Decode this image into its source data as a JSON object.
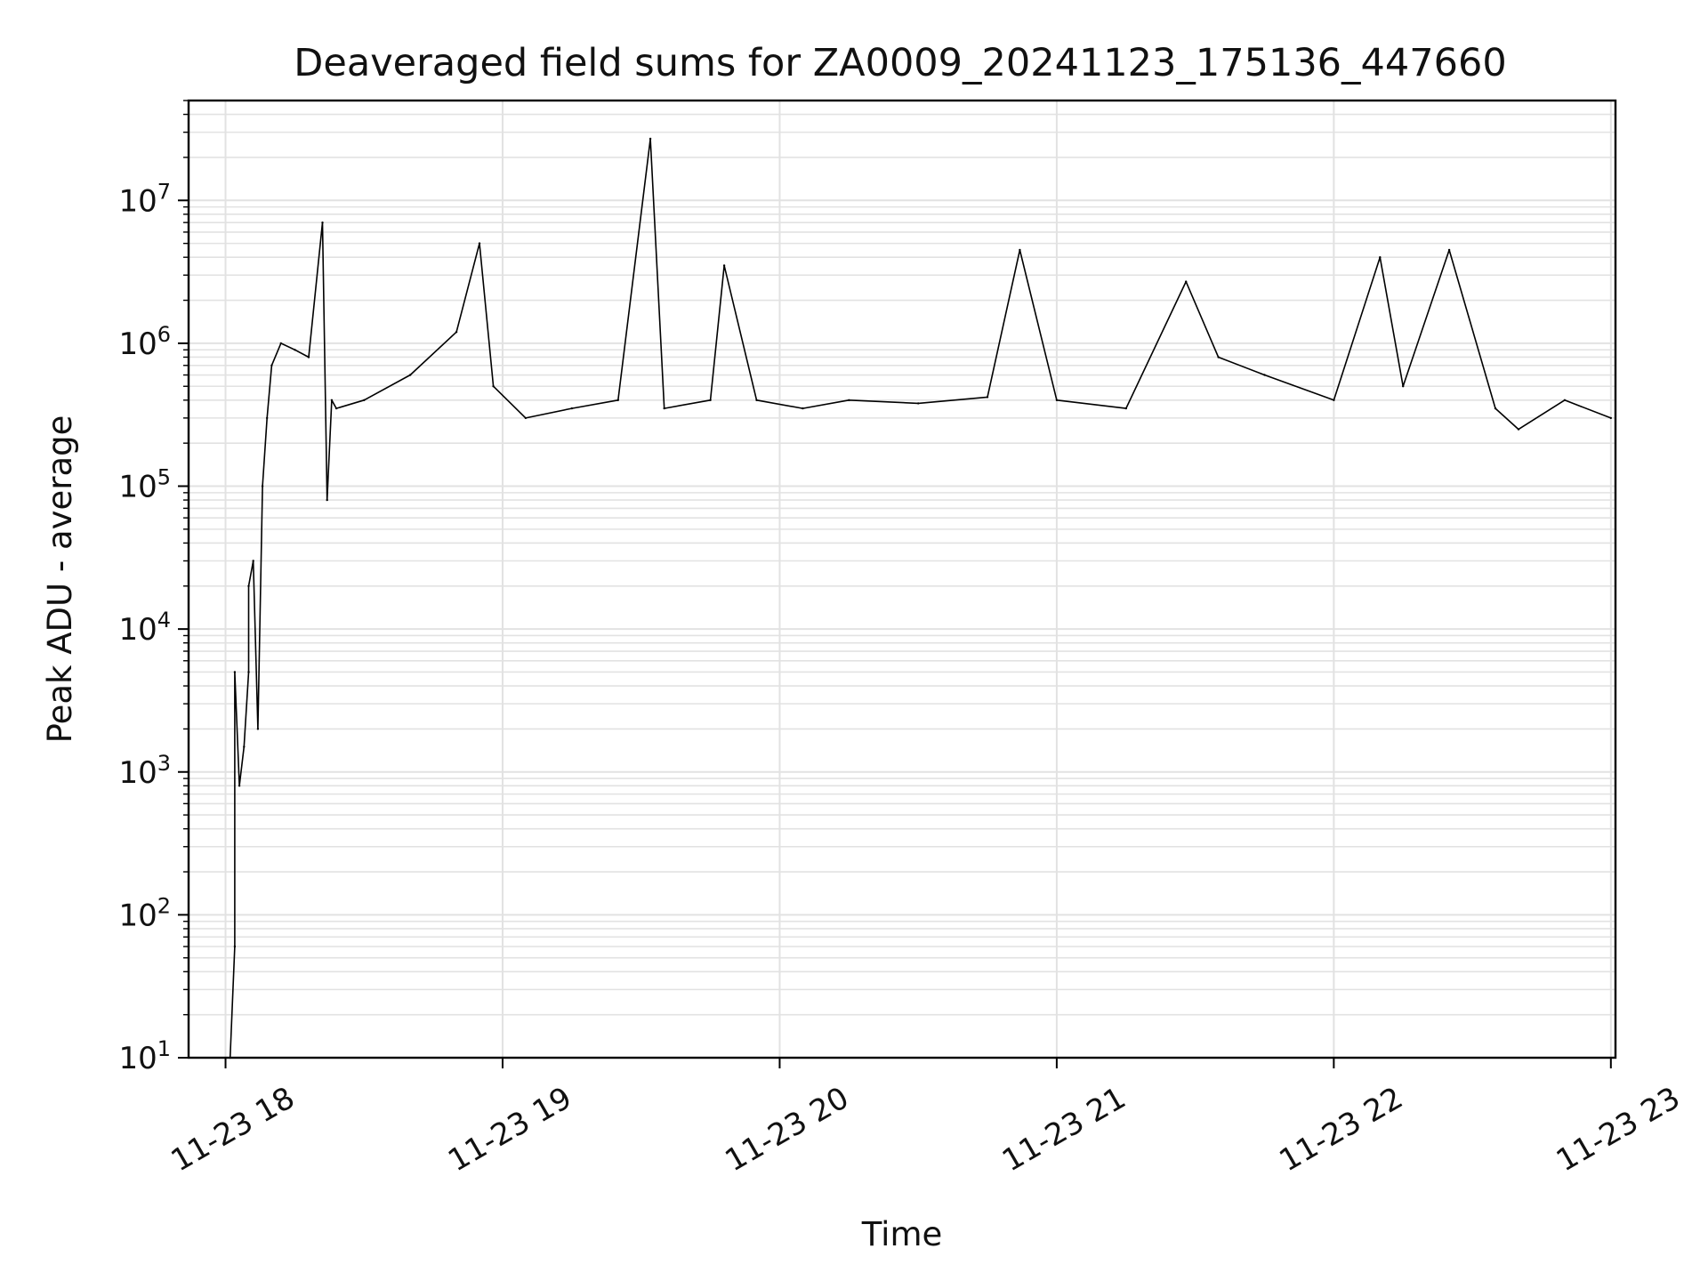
{
  "chart_data": {
    "type": "line",
    "title": "Deaveraged field sums for ZA0009_20241123_175136_447660",
    "xlabel": "Time",
    "ylabel": "Peak ADU - average",
    "yscale": "log",
    "ylim": [
      10,
      50000000
    ],
    "xlim": [
      "2024-11-23 17:52",
      "2024-11-23 23:01"
    ],
    "grid": true,
    "line_color": "#000000",
    "x_ticks": [
      {
        "value": "2024-11-23 18:00",
        "label": "11-23 18"
      },
      {
        "value": "2024-11-23 19:00",
        "label": "11-23 19"
      },
      {
        "value": "2024-11-23 20:00",
        "label": "11-23 20"
      },
      {
        "value": "2024-11-23 21:00",
        "label": "11-23 21"
      },
      {
        "value": "2024-11-23 22:00",
        "label": "11-23 22"
      },
      {
        "value": "2024-11-23 23:00",
        "label": "11-23 23"
      }
    ],
    "y_ticks": [
      {
        "value": 10,
        "base": "10",
        "exp": "1"
      },
      {
        "value": 100,
        "base": "10",
        "exp": "2"
      },
      {
        "value": 1000,
        "base": "10",
        "exp": "3"
      },
      {
        "value": 10000,
        "base": "10",
        "exp": "4"
      },
      {
        "value": 100000,
        "base": "10",
        "exp": "5"
      },
      {
        "value": 1000000,
        "base": "10",
        "exp": "6"
      },
      {
        "value": 10000000,
        "base": "10",
        "exp": "7"
      }
    ],
    "series": [
      {
        "x": [
          "2024-11-23 18:01",
          "2024-11-23 18:02",
          "2024-11-23 18:02",
          "2024-11-23 18:03",
          "2024-11-23 18:04",
          "2024-11-23 18:05",
          "2024-11-23 18:05",
          "2024-11-23 18:06",
          "2024-11-23 18:07",
          "2024-11-23 18:08",
          "2024-11-23 18:09",
          "2024-11-23 18:10",
          "2024-11-23 18:12",
          "2024-11-23 18:15",
          "2024-11-23 18:18",
          "2024-11-23 18:21",
          "2024-11-23 18:22",
          "2024-11-23 18:23",
          "2024-11-23 18:24",
          "2024-11-23 18:30",
          "2024-11-23 18:40",
          "2024-11-23 18:50",
          "2024-11-23 18:55",
          "2024-11-23 18:58",
          "2024-11-23 19:05",
          "2024-11-23 19:15",
          "2024-11-23 19:25",
          "2024-11-23 19:32",
          "2024-11-23 19:35",
          "2024-11-23 19:45",
          "2024-11-23 19:48",
          "2024-11-23 19:55",
          "2024-11-23 20:05",
          "2024-11-23 20:15",
          "2024-11-23 20:30",
          "2024-11-23 20:45",
          "2024-11-23 20:52",
          "2024-11-23 21:00",
          "2024-11-23 21:15",
          "2024-11-23 21:28",
          "2024-11-23 21:35",
          "2024-11-23 21:45",
          "2024-11-23 22:00",
          "2024-11-23 22:10",
          "2024-11-23 22:15",
          "2024-11-23 22:25",
          "2024-11-23 22:35",
          "2024-11-23 22:40",
          "2024-11-23 22:50",
          "2024-11-23 23:00"
        ],
        "y": [
          10,
          60,
          5000,
          800,
          1500,
          5000,
          20000,
          30000,
          2000,
          100000,
          300000,
          700000,
          1000000,
          900000,
          800000,
          7000000,
          80000,
          400000,
          350000,
          400000,
          600000,
          1200000,
          5000000,
          500000,
          300000,
          350000,
          400000,
          27000000,
          350000,
          400000,
          3500000,
          400000,
          350000,
          400000,
          380000,
          420000,
          4500000,
          400000,
          350000,
          2700000,
          800000,
          600000,
          400000,
          4000000,
          500000,
          4500000,
          350000,
          250000,
          400000,
          300000
        ]
      }
    ]
  }
}
